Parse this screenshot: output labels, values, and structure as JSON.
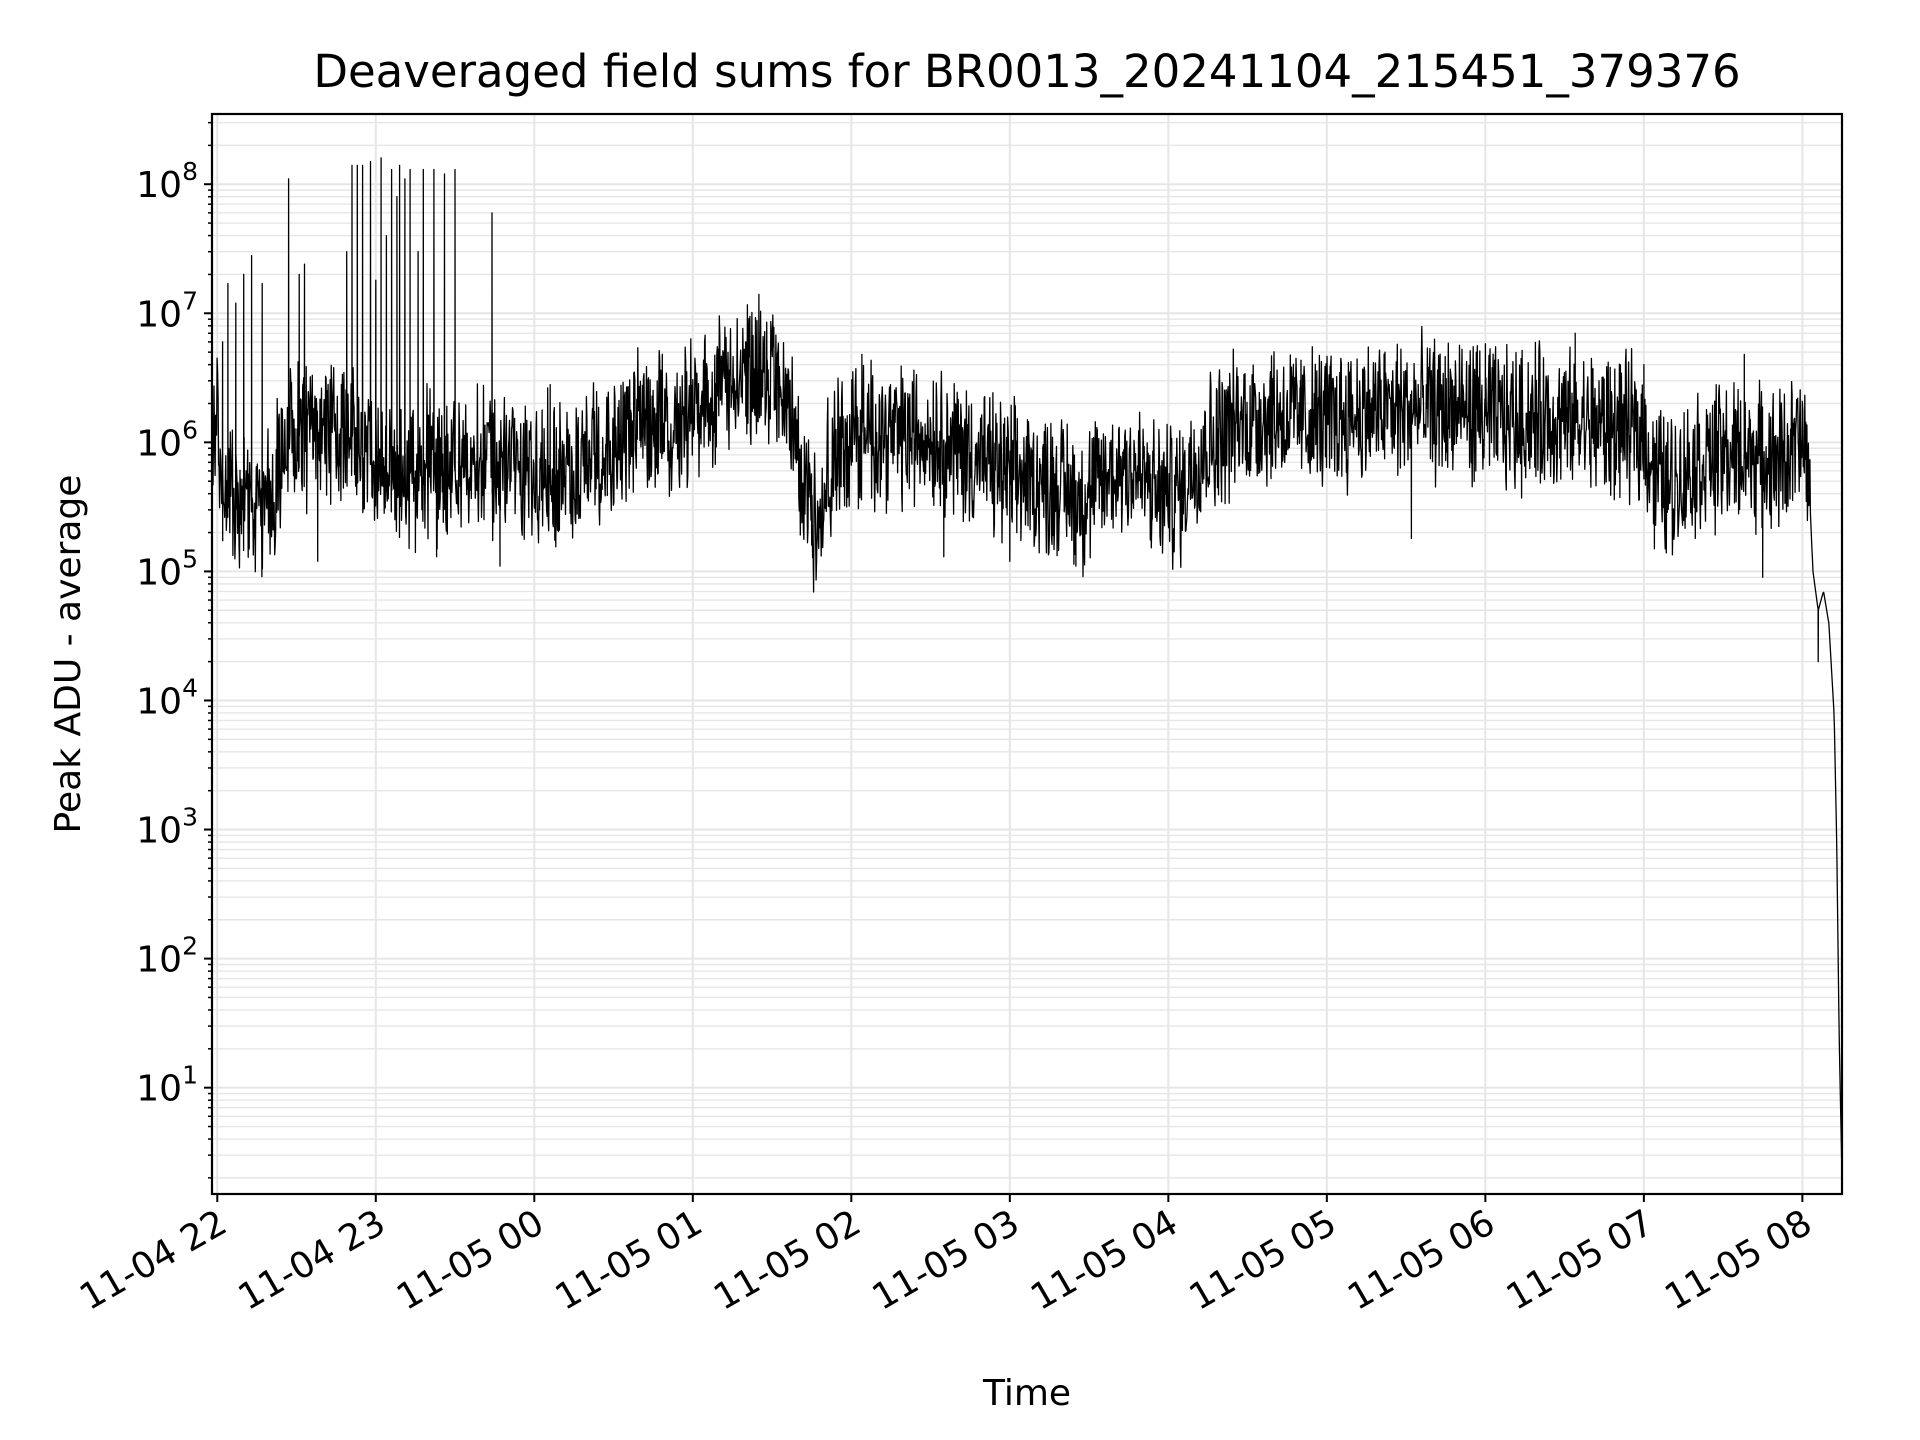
{
  "chart_data": {
    "type": "line",
    "title": "Deaveraged field sums for BR0013_20241104_215451_379376",
    "xlabel": "Time",
    "ylabel": "Peak ADU - average",
    "yscale": "log",
    "ylim": [
      1.5,
      350000000
    ],
    "xlim": [
      "2024-11-04 21:58",
      "2024-11-05 08:15"
    ],
    "grid": "major and minor",
    "line_color": "#000000",
    "x_ticks": [
      {
        "value": "2024-11-04 22:00",
        "label": "11-04 22"
      },
      {
        "value": "2024-11-04 23:00",
        "label": "11-04 23"
      },
      {
        "value": "2024-11-05 00:00",
        "label": "11-05 00"
      },
      {
        "value": "2024-11-05 01:00",
        "label": "11-05 01"
      },
      {
        "value": "2024-11-05 02:00",
        "label": "11-05 02"
      },
      {
        "value": "2024-11-05 03:00",
        "label": "11-05 03"
      },
      {
        "value": "2024-11-05 04:00",
        "label": "11-05 04"
      },
      {
        "value": "2024-11-05 05:00",
        "label": "11-05 05"
      },
      {
        "value": "2024-11-05 06:00",
        "label": "11-05 06"
      },
      {
        "value": "2024-11-05 07:00",
        "label": "11-05 07"
      },
      {
        "value": "2024-11-05 08:00",
        "label": "11-05 08"
      }
    ],
    "y_ticks": [
      {
        "value": 10,
        "base": "10",
        "exp": "1"
      },
      {
        "value": 100,
        "base": "10",
        "exp": "2"
      },
      {
        "value": 1000,
        "base": "10",
        "exp": "3"
      },
      {
        "value": 10000,
        "base": "10",
        "exp": "4"
      },
      {
        "value": 100000,
        "base": "10",
        "exp": "5"
      },
      {
        "value": 1000000,
        "base": "10",
        "exp": "6"
      },
      {
        "value": 10000000,
        "base": "10",
        "exp": "7"
      },
      {
        "value": 100000000,
        "base": "10",
        "exp": "8"
      }
    ],
    "series": [
      {
        "points": [
          [
            "2024-11-04 21:58",
            700000
          ],
          [
            "2024-11-04 22:00",
            1200000
          ],
          [
            "2024-11-04 22:02",
            600000
          ],
          [
            "2024-11-04 22:05",
            350000
          ],
          [
            "2024-11-04 22:08",
            280000
          ],
          [
            "2024-11-04 22:12",
            300000
          ],
          [
            "2024-11-04 22:16",
            260000
          ],
          [
            "2024-11-04 22:20",
            320000
          ],
          [
            "2024-11-04 22:25",
            900000
          ],
          [
            "2024-11-04 22:30",
            1100000
          ],
          [
            "2024-11-04 22:40",
            1300000
          ],
          [
            "2024-11-04 22:50",
            1200000
          ],
          [
            "2024-11-04 22:55",
            800000
          ],
          [
            "2024-11-04 23:00",
            600000
          ],
          [
            "2024-11-04 23:10",
            550000
          ],
          [
            "2024-11-04 23:20",
            650000
          ],
          [
            "2024-11-04 23:30",
            600000
          ],
          [
            "2024-11-04 23:36",
            800000
          ],
          [
            "2024-11-04 23:45",
            700000
          ],
          [
            "2024-11-05 00:00",
            650000
          ],
          [
            "2024-11-05 00:10",
            550000
          ],
          [
            "2024-11-05 00:20",
            700000
          ],
          [
            "2024-11-05 00:30",
            1100000
          ],
          [
            "2024-11-05 00:40",
            1300000
          ],
          [
            "2024-11-05 00:50",
            1300000
          ],
          [
            "2024-11-05 01:00",
            1700000
          ],
          [
            "2024-11-05 01:10",
            2500000
          ],
          [
            "2024-11-05 01:18",
            3200000
          ],
          [
            "2024-11-05 01:25",
            3500000
          ],
          [
            "2024-11-05 01:32",
            2500000
          ],
          [
            "2024-11-05 01:38",
            1200000
          ],
          [
            "2024-11-05 01:42",
            500000
          ],
          [
            "2024-11-05 01:46",
            250000
          ],
          [
            "2024-11-05 01:50",
            500000
          ],
          [
            "2024-11-05 02:00",
            1200000
          ],
          [
            "2024-11-05 02:10",
            1200000
          ],
          [
            "2024-11-05 02:20",
            1100000
          ],
          [
            "2024-11-05 02:30",
            1200000
          ],
          [
            "2024-11-05 02:40",
            900000
          ],
          [
            "2024-11-05 02:50",
            700000
          ],
          [
            "2024-11-05 03:00",
            550000
          ],
          [
            "2024-11-05 03:10",
            500000
          ],
          [
            "2024-11-05 03:20",
            450000
          ],
          [
            "2024-11-05 03:28",
            350000
          ],
          [
            "2024-11-05 03:35",
            500000
          ],
          [
            "2024-11-05 03:45",
            700000
          ],
          [
            "2024-11-05 03:55",
            400000
          ],
          [
            "2024-11-05 04:05",
            400000
          ],
          [
            "2024-11-05 04:10",
            800000
          ],
          [
            "2024-11-05 04:20",
            1200000
          ],
          [
            "2024-11-05 04:30",
            1500000
          ],
          [
            "2024-11-05 04:40",
            1700000
          ],
          [
            "2024-11-05 04:50",
            1500000
          ],
          [
            "2024-11-05 05:00",
            1500000
          ],
          [
            "2024-11-05 05:10",
            1700000
          ],
          [
            "2024-11-05 05:20",
            1700000
          ],
          [
            "2024-11-05 05:30",
            1800000
          ],
          [
            "2024-11-05 05:40",
            1800000
          ],
          [
            "2024-11-05 05:50",
            1800000
          ],
          [
            "2024-11-05 06:00",
            1600000
          ],
          [
            "2024-11-05 06:10",
            1500000
          ],
          [
            "2024-11-05 06:20",
            1600000
          ],
          [
            "2024-11-05 06:30",
            1400000
          ],
          [
            "2024-11-05 06:40",
            1400000
          ],
          [
            "2024-11-05 06:50",
            1300000
          ],
          [
            "2024-11-05 07:00",
            1200000
          ],
          [
            "2024-11-05 07:04",
            600000
          ],
          [
            "2024-11-05 07:10",
            450000
          ],
          [
            "2024-11-05 07:20",
            700000
          ],
          [
            "2024-11-05 07:30",
            800000
          ],
          [
            "2024-11-05 07:40",
            800000
          ],
          [
            "2024-11-05 07:50",
            700000
          ],
          [
            "2024-11-05 08:00",
            1000000
          ],
          [
            "2024-11-05 08:02",
            600000
          ],
          [
            "2024-11-05 08:03",
            300000
          ],
          [
            "2024-11-05 08:04",
            100000
          ],
          [
            "2024-11-05 08:06",
            50000
          ],
          [
            "2024-11-05 08:08",
            70000
          ],
          [
            "2024-11-05 08:10",
            40000
          ],
          [
            "2024-11-05 08:12",
            8000
          ],
          [
            "2024-11-05 08:13",
            800
          ],
          [
            "2024-11-05 08:14",
            20
          ],
          [
            "2024-11-05 08:15",
            2
          ]
        ],
        "spikes_high": [
          [
            "2024-11-04 22:02",
            6000000
          ],
          [
            "2024-11-04 22:04",
            17000000
          ],
          [
            "2024-11-04 22:07",
            12000000
          ],
          [
            "2024-11-04 22:10",
            20000000
          ],
          [
            "2024-11-04 22:13",
            28000000
          ],
          [
            "2024-11-04 22:17",
            17000000
          ],
          [
            "2024-11-04 22:27",
            110000000
          ],
          [
            "2024-11-04 22:31",
            20000000
          ],
          [
            "2024-11-04 22:33",
            24000000
          ],
          [
            "2024-11-04 22:49",
            30000000
          ],
          [
            "2024-11-04 22:51",
            140000000
          ],
          [
            "2024-11-04 22:53",
            140000000
          ],
          [
            "2024-11-04 22:55",
            140000000
          ],
          [
            "2024-11-04 22:58",
            150000000
          ],
          [
            "2024-11-04 23:00",
            18000000
          ],
          [
            "2024-11-04 23:02",
            160000000
          ],
          [
            "2024-11-04 23:04",
            40000000
          ],
          [
            "2024-11-04 23:06",
            130000000
          ],
          [
            "2024-11-04 23:08",
            80000000
          ],
          [
            "2024-11-04 23:09",
            140000000
          ],
          [
            "2024-11-04 23:11",
            110000000
          ],
          [
            "2024-11-04 23:13",
            130000000
          ],
          [
            "2024-11-04 23:16",
            30000000
          ],
          [
            "2024-11-04 23:18",
            130000000
          ],
          [
            "2024-11-04 23:22",
            130000000
          ],
          [
            "2024-11-04 23:26",
            120000000
          ],
          [
            "2024-11-04 23:30",
            130000000
          ],
          [
            "2024-11-04 23:44",
            60000000
          ],
          [
            "2024-11-05 00:06",
            2800000
          ],
          [
            "2024-11-05 01:20",
            6000000
          ],
          [
            "2024-11-05 01:25",
            14000000
          ],
          [
            "2024-11-05 01:28",
            7000000
          ],
          [
            "2024-11-05 02:04",
            4800000
          ],
          [
            "2024-11-05 04:50",
            3000000
          ],
          [
            "2024-11-05 05:22",
            5000000
          ],
          [
            "2024-11-05 06:00",
            5800000
          ],
          [
            "2024-11-05 06:34",
            7000000
          ],
          [
            "2024-11-05 07:00",
            4000000
          ],
          [
            "2024-11-05 07:38",
            4800000
          ]
        ],
        "spikes_low": [
          [
            "2024-11-04 22:12",
            150000
          ],
          [
            "2024-11-04 22:38",
            120000
          ],
          [
            "2024-11-04 23:15",
            140000
          ],
          [
            "2024-11-04 23:23",
            130000
          ],
          [
            "2024-11-04 23:47",
            110000
          ],
          [
            "2024-11-05 01:45",
            160000
          ],
          [
            "2024-11-05 02:35",
            130000
          ],
          [
            "2024-11-05 03:00",
            120000
          ],
          [
            "2024-11-05 03:25",
            110000
          ],
          [
            "2024-11-05 05:32",
            180000
          ],
          [
            "2024-11-05 07:04",
            150000
          ],
          [
            "2024-11-05 07:45",
            90000
          ],
          [
            "2024-11-05 08:06",
            20000
          ]
        ]
      }
    ]
  }
}
